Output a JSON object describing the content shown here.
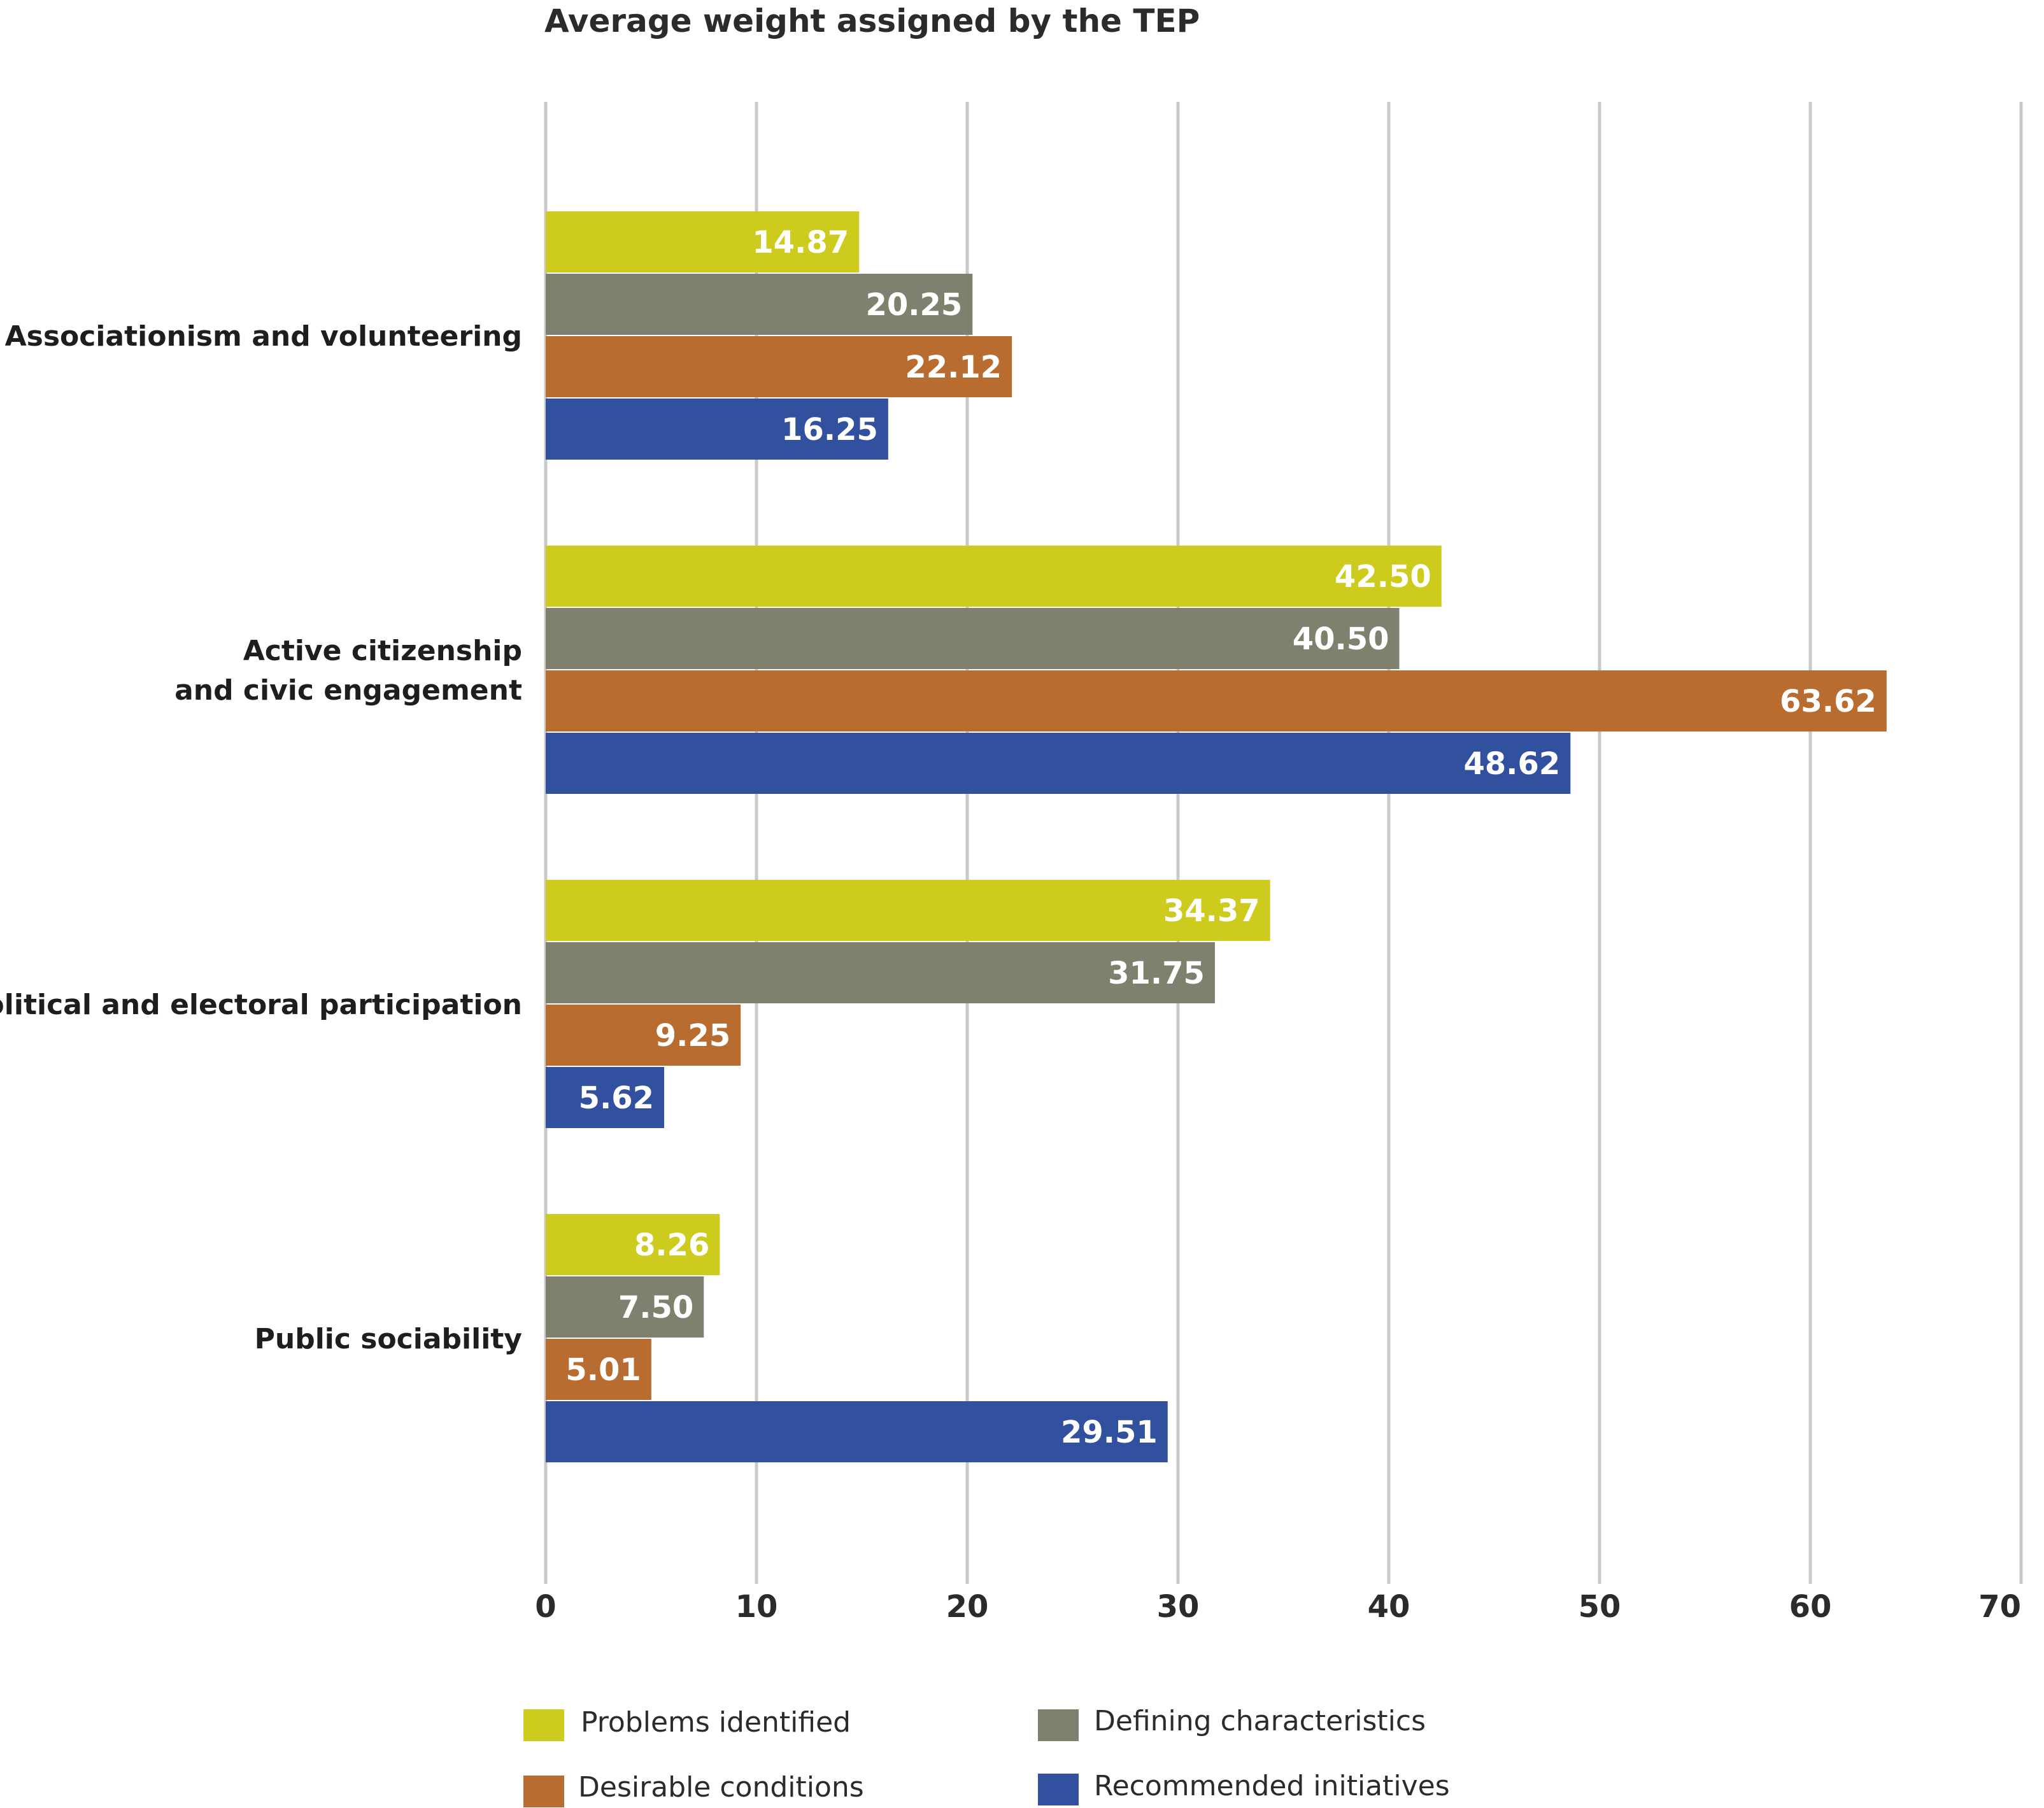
{
  "chart_data": {
    "type": "bar",
    "orientation": "horizontal",
    "title": "Average weight assigned by the TEP",
    "categories": [
      [
        "Associationism and volunteering"
      ],
      [
        "Active citizenship",
        "and civic engagement"
      ],
      [
        "Political and electoral participation"
      ],
      [
        "Public sociability"
      ]
    ],
    "series": [
      {
        "name": "Problems identified",
        "color": "#cdcc1e",
        "values": [
          14.87,
          42.5,
          34.37,
          8.26
        ],
        "labels": [
          "14.87",
          "42.50",
          "34.37",
          "8.26"
        ]
      },
      {
        "name": "Defining characteristics",
        "color": "#7f806e",
        "values": [
          20.25,
          40.5,
          31.75,
          7.5
        ],
        "labels": [
          "20.25",
          "40.50",
          "31.75",
          "7.50"
        ]
      },
      {
        "name": "Desirable conditions",
        "color": "#b96c2f",
        "values": [
          22.12,
          63.62,
          9.25,
          5.01
        ],
        "labels": [
          "22.12",
          "63.62",
          "9.25",
          "5.01"
        ]
      },
      {
        "name": "Recommended initiatives",
        "color": "#31509d",
        "values": [
          16.25,
          48.62,
          5.62,
          29.51
        ],
        "labels": [
          "16.25",
          "48.62",
          "5.62",
          "29.51"
        ]
      }
    ],
    "xlim": [
      0,
      70
    ],
    "xticks": [
      0,
      10,
      20,
      30,
      40,
      50,
      60,
      70
    ],
    "xlabel": "",
    "ylabel": "",
    "grid": true,
    "legend_position": "bottom"
  }
}
